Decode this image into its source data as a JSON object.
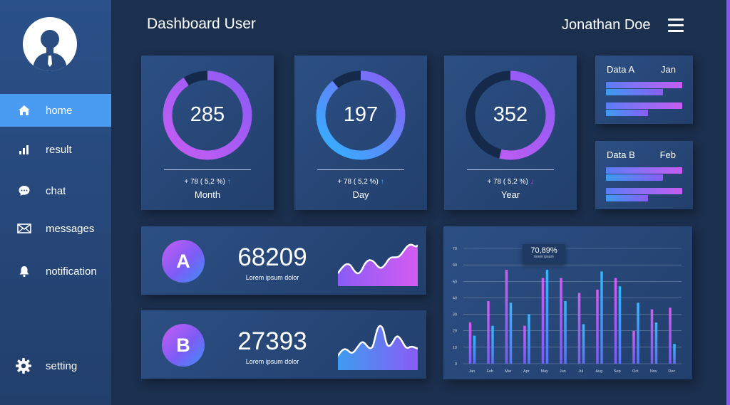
{
  "header": {
    "title": "Dashboard User",
    "user_name": "Jonathan Doe"
  },
  "sidebar": {
    "items": [
      {
        "label": "home",
        "icon": "home-icon",
        "active": true
      },
      {
        "label": "result",
        "icon": "bar-chart-icon",
        "active": false
      },
      {
        "label": "chat",
        "icon": "chat-icon",
        "active": false
      },
      {
        "label": "messages",
        "icon": "envelope-icon",
        "active": false
      },
      {
        "label": "notification",
        "icon": "bell-icon",
        "active": false
      },
      {
        "label": "setting",
        "icon": "gear-icon",
        "active": false
      }
    ]
  },
  "donuts": [
    {
      "value": "285",
      "change": "+ 78 ( 5,2 %)",
      "trend": "up",
      "label": "Month",
      "fill": 0.91
    },
    {
      "value": "197",
      "change": "+ 78 ( 5,2 %)",
      "trend": "up",
      "label": "Day",
      "fill": 0.89
    },
    {
      "value": "352",
      "change": "+ 78 ( 5,2 %)",
      "trend": "down",
      "label": "Year",
      "fill": 0.54
    }
  ],
  "bar_cards": [
    {
      "label": "Data A",
      "month": "Jan",
      "bars": [
        1.0,
        0.75,
        1.0,
        0.55
      ]
    },
    {
      "label": "Data B",
      "month": "Feb",
      "bars": [
        1.0,
        0.75,
        1.0,
        0.55
      ]
    }
  ],
  "stats": [
    {
      "letter": "A",
      "value": "68209",
      "subtitle": "Lorem ipsum dolor"
    },
    {
      "letter": "B",
      "value": "27393",
      "subtitle": "Lorem ipsum dolor"
    }
  ],
  "tooltip": {
    "value": "70,89%",
    "subtitle": "lorem ipsum"
  },
  "colors": {
    "accent": "#4a9cf2",
    "purple": "#c65cf2",
    "blue": "#3d9cf0",
    "edge": "#8b52f0"
  },
  "chart_data": {
    "type": "bar",
    "categories": [
      "Jan",
      "Feb",
      "Mar",
      "Apr",
      "May",
      "Jun",
      "Jul",
      "Aug",
      "Sep",
      "Oct",
      "Nov",
      "Dec"
    ],
    "series": [
      {
        "values": [
          25,
          38,
          57,
          23,
          52,
          52,
          43,
          45,
          52,
          20,
          33,
          34
        ]
      },
      {
        "values": [
          17,
          23,
          37,
          30,
          57,
          38,
          24,
          56,
          47,
          37,
          25,
          12
        ]
      }
    ],
    "y_ticks": [
      0,
      10,
      20,
      30,
      40,
      50,
      60,
      70
    ],
    "ylim": [
      0,
      70
    ],
    "grid": true
  }
}
